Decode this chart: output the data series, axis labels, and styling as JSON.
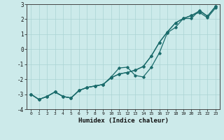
{
  "x": [
    0,
    1,
    2,
    3,
    4,
    5,
    6,
    7,
    8,
    9,
    10,
    11,
    12,
    13,
    14,
    15,
    16,
    17,
    18,
    19,
    20,
    21,
    22,
    23
  ],
  "line_smooth_upper": [
    -3.0,
    -3.35,
    -3.15,
    -2.85,
    -3.15,
    -3.25,
    -2.75,
    -2.55,
    -2.45,
    -2.35,
    -1.9,
    -1.65,
    -1.55,
    -1.4,
    -1.15,
    -0.45,
    0.45,
    1.15,
    1.75,
    2.05,
    2.25,
    2.55,
    2.2,
    2.85
  ],
  "line_jagged": [
    -3.0,
    -3.35,
    -3.15,
    -2.85,
    -3.15,
    -3.25,
    -2.75,
    -2.55,
    -2.45,
    -2.35,
    -1.85,
    -1.25,
    -1.2,
    -1.75,
    -1.85,
    -1.2,
    -0.25,
    1.1,
    1.45,
    2.05,
    2.05,
    2.6,
    2.2,
    2.85
  ],
  "line_smooth_lower": [
    -3.0,
    -3.35,
    -3.15,
    -2.85,
    -3.15,
    -3.25,
    -2.75,
    -2.55,
    -2.45,
    -2.35,
    -1.9,
    -1.65,
    -1.55,
    -1.4,
    -1.15,
    -0.45,
    0.45,
    1.15,
    1.75,
    2.05,
    2.25,
    2.45,
    2.1,
    2.75
  ],
  "bg_color": "#cceaea",
  "grid_color": "#aad4d4",
  "line_color": "#1a6b6b",
  "xlabel": "Humidex (Indice chaleur)",
  "ylim": [
    -4,
    3
  ],
  "xlim": [
    -0.5,
    23.5
  ]
}
